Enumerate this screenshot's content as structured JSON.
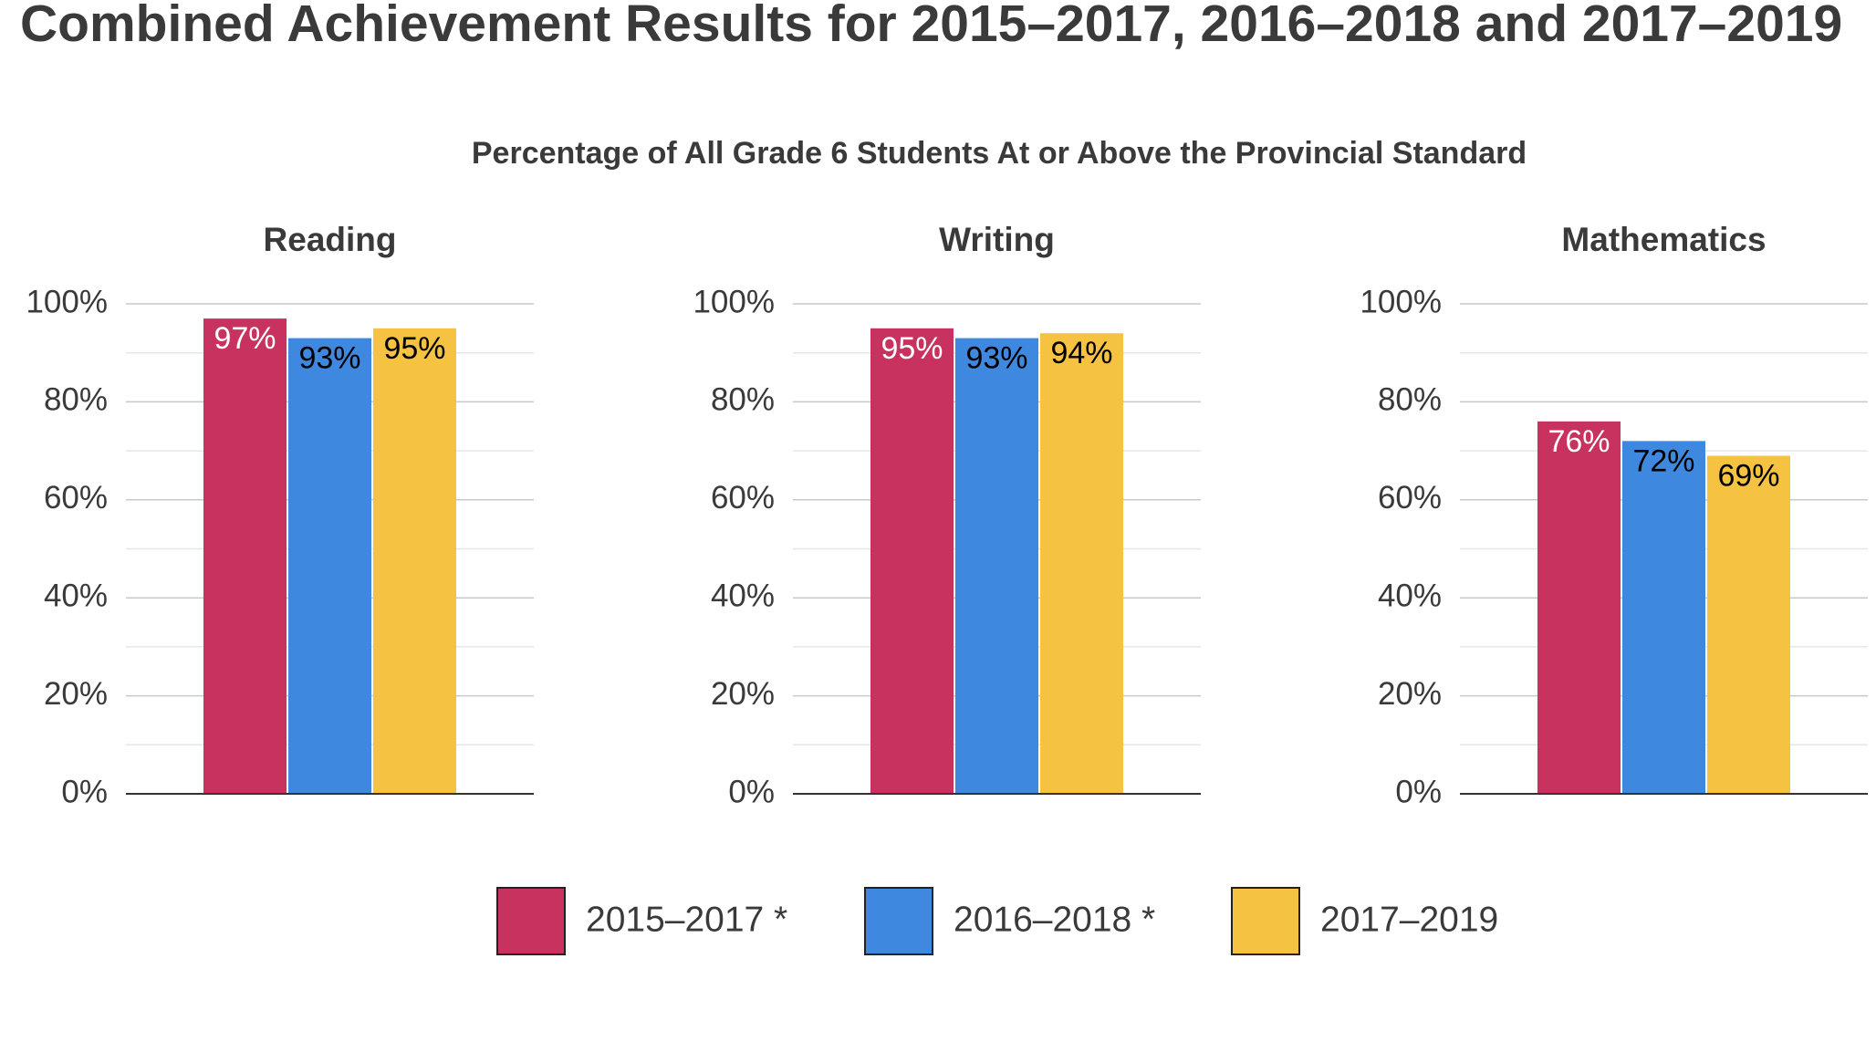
{
  "chart_data": {
    "type": "bar",
    "title": "Combined Achievement Results for 2015–2017, 2016–2018 and 2017–2019",
    "subtitle": "Percentage of All Grade 6 Students At or Above the Provincial Standard",
    "categories": [
      "Reading",
      "Writing",
      "Mathematics"
    ],
    "series": [
      {
        "name": "2015–2017 *",
        "color": "#c8325e",
        "label_color": "#ffffff",
        "values": [
          97,
          95,
          76
        ],
        "value_labels": [
          "97%",
          "95%",
          "76%"
        ]
      },
      {
        "name": "2016–2018 *",
        "color": "#3f88df",
        "label_color": "#000000",
        "values": [
          93,
          93,
          72
        ],
        "value_labels": [
          "93%",
          "93%",
          "72%"
        ]
      },
      {
        "name": "2017–2019",
        "color": "#f5c242",
        "label_color": "#000000",
        "values": [
          95,
          94,
          69
        ],
        "value_labels": [
          "95%",
          "94%",
          "69%"
        ]
      }
    ],
    "ylim": [
      0,
      100
    ],
    "yticks": [
      {
        "value": 0,
        "label": "0%"
      },
      {
        "value": 20,
        "label": "20%"
      },
      {
        "value": 40,
        "label": "40%"
      },
      {
        "value": 60,
        "label": "60%"
      },
      {
        "value": 80,
        "label": "80%"
      },
      {
        "value": 100,
        "label": "100%"
      }
    ],
    "minor_yticks": [
      10,
      30,
      50,
      70,
      90
    ],
    "grid": true,
    "legend": "bottom"
  }
}
